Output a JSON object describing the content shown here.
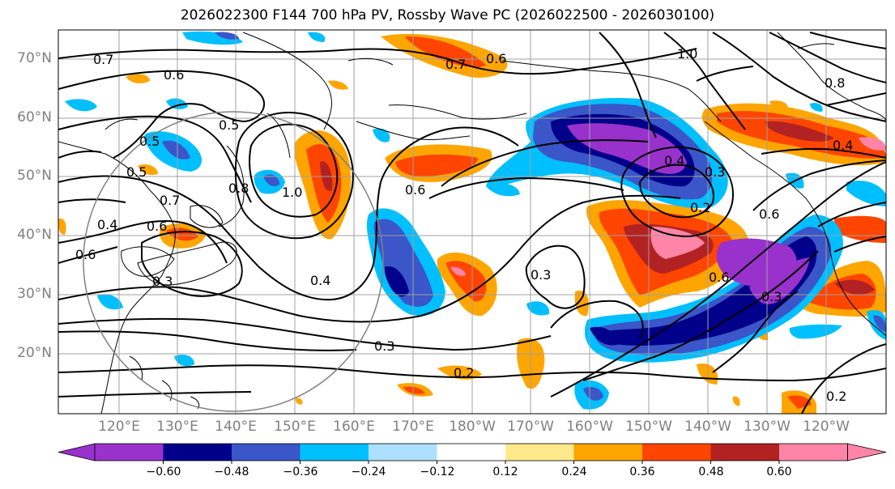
{
  "title": "2026022300 F144 700 hPa PV, Rossby Wave PC (2026022500 - 2026030100)",
  "lat_labels": [
    "70°N",
    "60°N",
    "50°N",
    "40°N",
    "30°N",
    "20°N"
  ],
  "lon_labels": [
    "120°E",
    "130°E",
    "140°E",
    "150°E",
    "160°E",
    "170°E",
    "180°W",
    "170°W",
    "160°W",
    "150°W",
    "140°W",
    "130°W",
    "120°W"
  ],
  "contour_labels": [
    "0.7",
    "0.6",
    "0.5",
    "0.8",
    "1.0",
    "0.5",
    "0.6",
    "0.7",
    "0.5",
    "0.4",
    "0.3",
    "0.2",
    "0.6",
    "0.3",
    "0.6",
    "0.3",
    "0.4",
    "0.3",
    "0.2",
    "0.6",
    "0.3",
    "0.4",
    "0.8",
    "1.0",
    "0.6",
    "0.7",
    "0.6",
    "0.4",
    "0.2"
  ],
  "colorbar": {
    "ticks": [
      "−0.60",
      "−0.48",
      "−0.36",
      "−0.24",
      "−0.12",
      "0.12",
      "0.24",
      "0.36",
      "0.48",
      "0.60"
    ],
    "colors": [
      "#9932CC",
      "#00008B",
      "#3A56C8",
      "#00BFFF",
      "#ADDFFF",
      "#FFFFFF",
      "#FFE98A",
      "#FFA500",
      "#FF4500",
      "#B22222",
      "#FF85A8"
    ]
  }
}
